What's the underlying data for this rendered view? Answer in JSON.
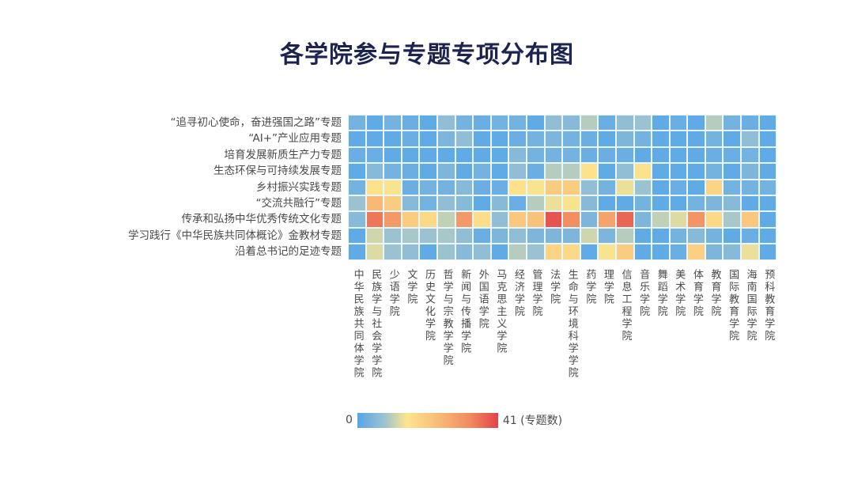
{
  "title": "各学院参与专题专项分布图",
  "legend": {
    "min_label": "0",
    "max_label": "41 (专题数)"
  },
  "colors": {
    "low": "#56a6ea",
    "mid_low": "#9fc4cf",
    "mid": "#fde58c",
    "mid_high": "#f9c07a",
    "high_mid": "#f08b5e",
    "high": "#e3424a",
    "title": "#1c2350"
  },
  "chart_data": {
    "type": "heatmap",
    "title": "各学院参与专题专项分布图",
    "xlabel": "",
    "ylabel": "",
    "colorbar": {
      "min": 0,
      "max": 41,
      "label": "专题数"
    },
    "rows": [
      "“追寻初心使命，奋进强国之路”专题",
      "“AI+”产业应用专题",
      "培育发展新质生产力专题",
      "生态环保与可持续发展专题",
      "乡村振兴实践专题",
      "“交流共融行”专题",
      "传承和弘扬中华优秀传统文化专题",
      "学习践行《中华民族共同体概论》金教材专题",
      "沿着总书记的足迹专题"
    ],
    "columns": [
      "中华民族共同体学院",
      "民族学与社会学学院",
      "少语学院",
      "文学院",
      "历史文化学院",
      "哲学与宗教学学院",
      "新闻与传播学院",
      "外国语学院",
      "马克思主义学院",
      "经济学院",
      "管理学院",
      "法学院",
      "生命与环境科学学院",
      "药学院",
      "理学院",
      "信息工程学院",
      "音乐学院",
      "舞蹈学院",
      "美术学院",
      "体育学院",
      "教育学院",
      "国际教育学院",
      "海南国际学院",
      "预科教育学院"
    ],
    "values": [
      [
        3,
        1,
        3,
        2,
        1,
        6,
        3,
        2,
        3,
        3,
        1,
        6,
        5,
        9,
        2,
        6,
        7,
        1,
        2,
        1,
        9,
        3,
        2,
        1
      ],
      [
        1,
        1,
        1,
        2,
        1,
        4,
        6,
        1,
        1,
        2,
        3,
        4,
        3,
        2,
        1,
        4,
        3,
        1,
        1,
        1,
        3,
        1,
        6,
        1
      ],
      [
        2,
        2,
        1,
        1,
        1,
        1,
        1,
        1,
        1,
        5,
        3,
        3,
        3,
        2,
        2,
        2,
        1,
        1,
        1,
        1,
        2,
        2,
        3,
        1
      ],
      [
        1,
        5,
        3,
        2,
        1,
        4,
        1,
        3,
        1,
        6,
        2,
        9,
        9,
        15,
        1,
        6,
        15,
        1,
        1,
        1,
        3,
        1,
        4,
        1
      ],
      [
        3,
        15,
        14,
        2,
        3,
        3,
        5,
        2,
        2,
        15,
        14,
        20,
        20,
        6,
        3,
        13,
        7,
        1,
        2,
        1,
        18,
        3,
        3,
        3
      ],
      [
        7,
        24,
        20,
        5,
        3,
        6,
        5,
        1,
        5,
        2,
        9,
        13,
        14,
        5,
        1,
        1,
        3,
        1,
        1,
        3,
        4,
        5,
        1,
        1
      ],
      [
        5,
        35,
        30,
        20,
        17,
        10,
        30,
        16,
        6,
        21,
        22,
        39,
        32,
        4,
        28,
        37,
        4,
        10,
        12,
        31,
        17,
        8,
        21,
        1
      ],
      [
        1,
        11,
        7,
        8,
        7,
        8,
        6,
        2,
        4,
        6,
        4,
        4,
        4,
        11,
        4,
        9,
        1,
        1,
        3,
        5,
        3,
        1,
        2,
        1
      ],
      [
        1,
        12,
        7,
        6,
        1,
        7,
        5,
        6,
        1,
        9,
        7,
        18,
        17,
        1,
        14,
        20,
        1,
        1,
        2,
        19,
        4,
        5,
        13,
        1
      ]
    ]
  }
}
